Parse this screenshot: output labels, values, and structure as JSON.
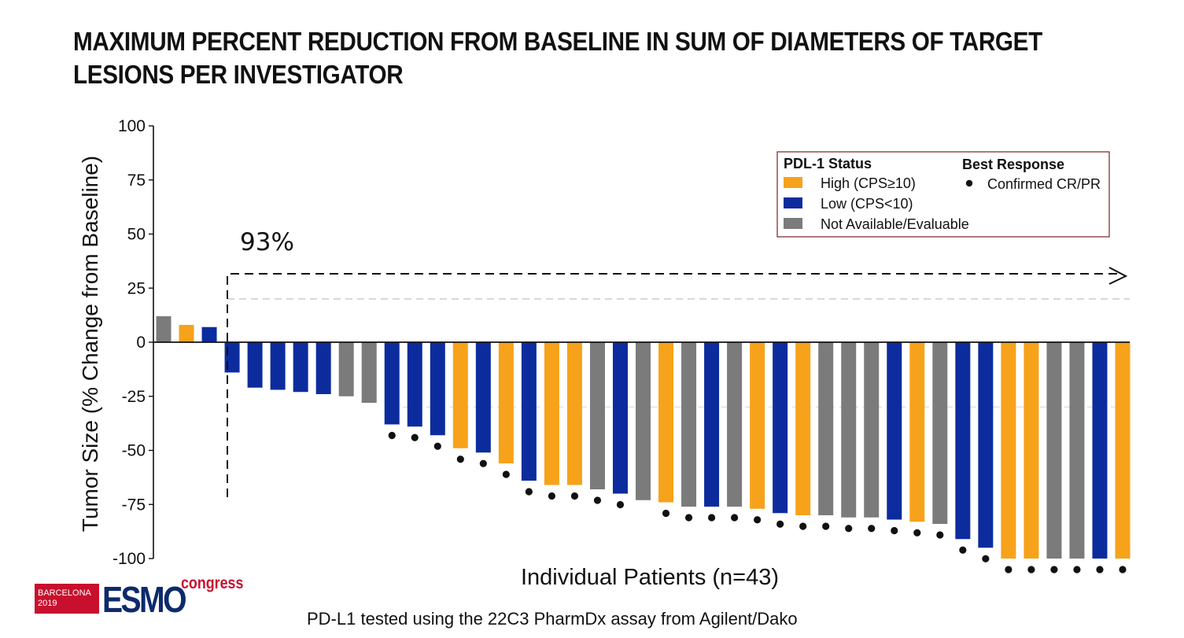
{
  "slide": {
    "title": "MAXIMUM PERCENT REDUCTION FROM BASELINE IN SUM OF DIAMETERS OF TARGET LESIONS PER INVESTIGATOR",
    "footnote": "PD-L1 tested using the 22C3 PharmDx assay from Agilent/Dako"
  },
  "logo": {
    "city": "BARCELONA",
    "year": "2019",
    "brand": "ESMO",
    "suffix": "congress"
  },
  "colors": {
    "high": "#f7a21b",
    "low": "#0c2c9e",
    "na": "#7b7b7b",
    "axis": "#111111",
    "dot": "#111111"
  },
  "chart_data": {
    "type": "bar",
    "title": "MAXIMUM PERCENT REDUCTION FROM BASELINE IN SUM OF DIAMETERS OF TARGET LESIONS PER INVESTIGATOR",
    "xlabel": "Individual Patients (n=43)",
    "ylabel": "Tumor Size (% Change from Baseline)",
    "ylim": [
      -100,
      100
    ],
    "yticks": [
      100,
      75,
      50,
      25,
      0,
      -25,
      -50,
      -75,
      -100
    ],
    "ytick_labels": [
      "100",
      "75",
      "50",
      "25",
      "0",
      "-25",
      "-50",
      "-75",
      "-100"
    ],
    "grid": false,
    "reference_lines": [
      20,
      -30
    ],
    "annotation": "93%",
    "legend": {
      "placement": "top-right",
      "status_title": "PDL-1 Status",
      "response_title": "Best Response",
      "entries": [
        {
          "key": "high",
          "label": "High (CPS≥10)"
        },
        {
          "key": "low",
          "label": "Low (CPS<10)"
        },
        {
          "key": "na",
          "label": "Not Available/Evaluable"
        }
      ],
      "response_label": "Confirmed CR/PR"
    },
    "values": [
      12,
      8,
      7,
      -14,
      -21,
      -22,
      -23,
      -24,
      -25,
      -28,
      -38,
      -39,
      -43,
      -49,
      -51,
      -56,
      -64,
      -66,
      -66,
      -68,
      -70,
      -73,
      -74,
      -76,
      -76,
      -76,
      -77,
      -79,
      -80,
      -80,
      -81,
      -81,
      -82,
      -83,
      -84,
      -91,
      -95,
      -100,
      -100,
      -100,
      -100,
      -100,
      -100
    ],
    "status": [
      "na",
      "high",
      "low",
      "low",
      "low",
      "low",
      "low",
      "low",
      "na",
      "na",
      "low",
      "low",
      "low",
      "high",
      "low",
      "high",
      "low",
      "high",
      "high",
      "na",
      "low",
      "na",
      "high",
      "na",
      "low",
      "na",
      "high",
      "low",
      "high",
      "na",
      "na",
      "na",
      "low",
      "high",
      "na",
      "low",
      "low",
      "high",
      "high",
      "na",
      "na",
      "low",
      "high"
    ],
    "confirmed_response": [
      false,
      false,
      false,
      false,
      false,
      false,
      false,
      false,
      false,
      false,
      true,
      true,
      true,
      true,
      true,
      true,
      true,
      true,
      true,
      true,
      true,
      false,
      true,
      true,
      true,
      true,
      true,
      true,
      true,
      true,
      true,
      true,
      true,
      true,
      true,
      true,
      true,
      true,
      true,
      true,
      true,
      true,
      true
    ]
  }
}
